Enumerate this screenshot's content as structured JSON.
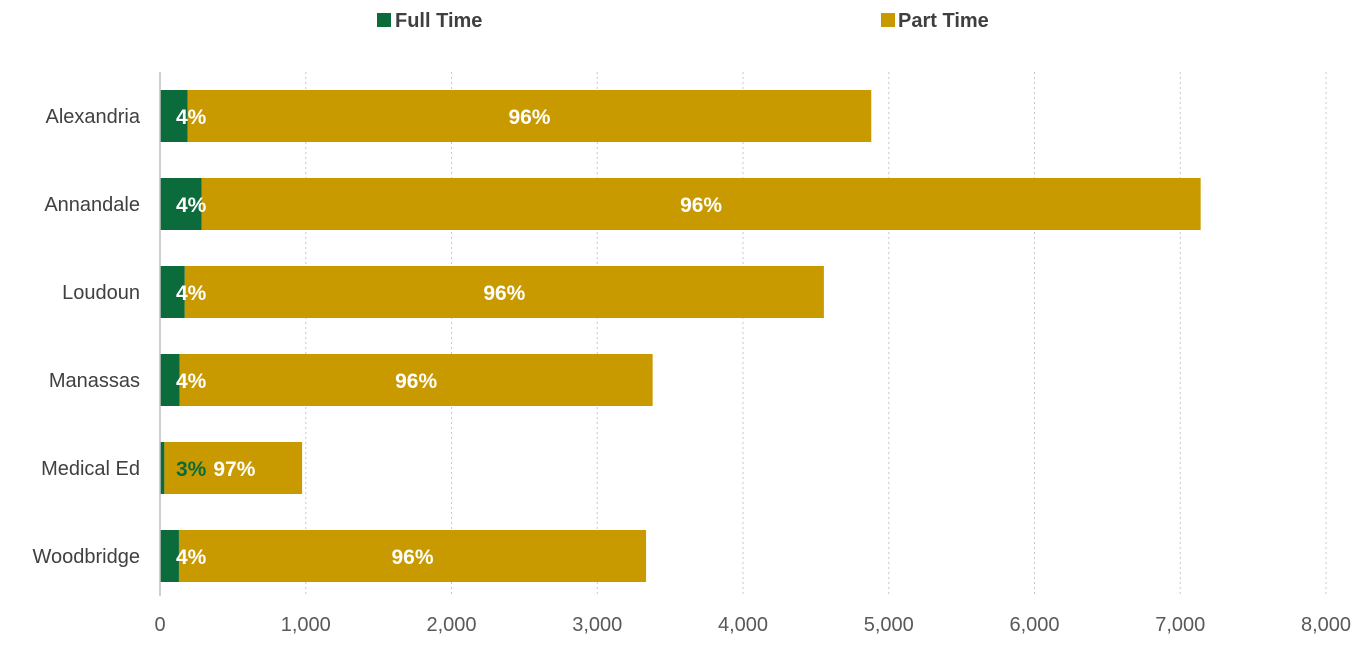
{
  "chart_data": {
    "type": "bar",
    "orientation": "horizontal",
    "stacked": true,
    "categories": [
      "Alexandria",
      "Annandale",
      "Loudoun",
      "Manassas",
      "Medical Ed",
      "Woodbridge"
    ],
    "series": [
      {
        "name": "Full Time",
        "color": "#0b6b3a",
        "values": [
          190,
          285,
          170,
          135,
          30,
          130
        ],
        "labels": [
          "4%",
          "4%",
          "4%",
          "4%",
          "3%",
          "4%"
        ]
      },
      {
        "name": "Part Time",
        "color": "#c99a00",
        "values": [
          4690,
          6855,
          4385,
          3245,
          945,
          3205
        ],
        "labels": [
          "96%",
          "96%",
          "96%",
          "96%",
          "97%",
          "96%"
        ]
      }
    ],
    "xlim": [
      0,
      8000
    ],
    "xticks": [
      0,
      1000,
      2000,
      3000,
      4000,
      5000,
      6000,
      7000,
      8000
    ],
    "xtick_labels": [
      "0",
      "1,000",
      "2,000",
      "3,000",
      "4,000",
      "5,000",
      "6,000",
      "7,000",
      "8,000"
    ],
    "grid": "vertical dotted",
    "legend_position": "top",
    "title": "",
    "xlabel": "",
    "ylabel": ""
  }
}
